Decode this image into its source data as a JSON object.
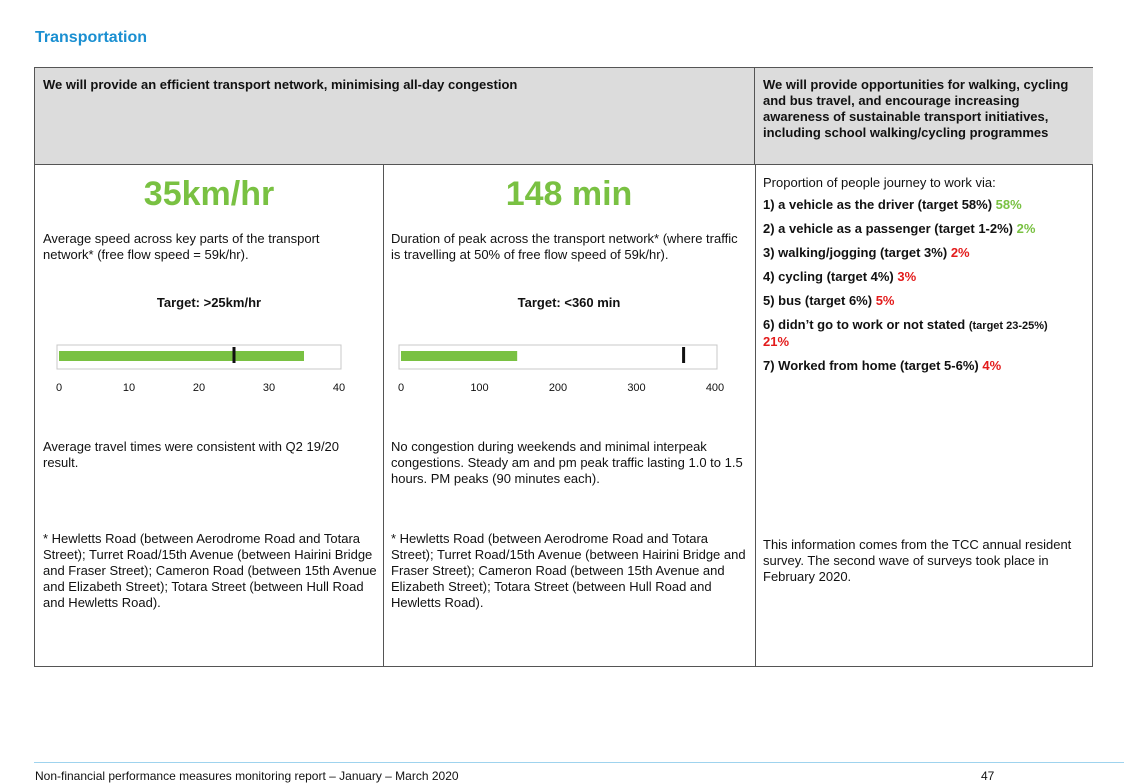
{
  "section_title": "Transportation",
  "headers": {
    "left": "We will provide an efficient transport network, minimising all-day congestion",
    "right": "We will provide opportunities for walking, cycling and bus travel, and encourage increasing awareness of sustainable transport initiatives, including school walking/cycling programmes"
  },
  "col1": {
    "big_value": "35km/hr",
    "description": "Average speed across key parts of the transport network* (free flow speed = 59k/hr).",
    "target": "Target: >25km/hr",
    "chart_data": {
      "type": "bar",
      "orientation": "horizontal",
      "value": 35,
      "target_marker": 25,
      "xlim": [
        0,
        40
      ],
      "ticks": [
        "0",
        "10",
        "20",
        "30",
        "40"
      ],
      "colors": {
        "bar": "#79c142",
        "marker": "#111111"
      }
    },
    "comment": "Average travel times were consistent with Q2 19/20 result.",
    "footnote": "* Hewletts Road (between Aerodrome Road and Totara Street); Turret Road/15th Avenue (between Hairini Bridge and Fraser Street); Cameron Road (between 15th Avenue and Elizabeth Street); Totara Street (between Hull Road and Hewletts Road)."
  },
  "col2": {
    "big_value": "148 min",
    "description": "Duration of peak across the transport network* (where traffic is travelling at 50% of free flow speed of 59k/hr).",
    "target": "Target: <360 min",
    "chart_data": {
      "type": "bar",
      "orientation": "horizontal",
      "value": 148,
      "target_marker": 360,
      "xlim": [
        0,
        400
      ],
      "ticks": [
        "0",
        "100",
        "200",
        "300",
        "400"
      ],
      "colors": {
        "bar": "#79c142",
        "marker": "#111111"
      }
    },
    "comment": "No congestion during weekends and minimal interpeak congestions. Steady am and pm peak traffic lasting 1.0 to 1.5 hours. PM peaks (90 minutes each).",
    "footnote": "* Hewletts Road (between Aerodrome Road and Totara Street); Turret Road/15th Avenue (between Hairini Bridge and Fraser Street); Cameron Road (between 15th Avenue and Elizabeth Street); Totara Street (between Hull Road and Hewletts Road)."
  },
  "col3": {
    "intro": "Proportion of people journey to work via:",
    "items": [
      {
        "label": "1) a vehicle as the driver (target 58%)",
        "value": "58%"
      },
      {
        "label": "2) a vehicle as a passenger (target 1-2%)",
        "value": "2%"
      },
      {
        "label": "3) walking/jogging (target 3%)",
        "value": "2%"
      },
      {
        "label": "4) cycling (target 4%)",
        "value": "3%"
      },
      {
        "label": "5) bus (target 6%)",
        "value": "5%"
      },
      {
        "label": "6) didn’t go to work or not stated",
        "small": "(target 23-25%)",
        "value": "21%"
      },
      {
        "label": "7) Worked from home (target 5-6%)",
        "value": "4%"
      }
    ],
    "note": "This information comes from the TCC annual resident survey. The second wave of surveys took place in February 2020."
  },
  "footer": {
    "left": "Non-financial performance measures monitoring report – January – March 2020",
    "page": "47"
  }
}
